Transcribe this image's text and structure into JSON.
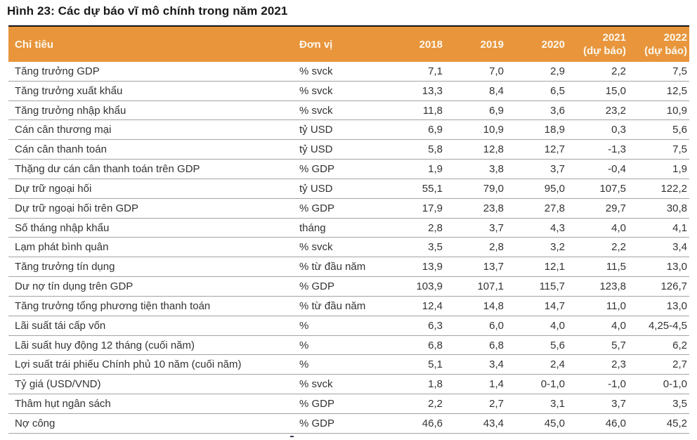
{
  "title": "Hình 23: Các dự báo vĩ mô chính trong năm 2021",
  "colors": {
    "header_background": "#E8953C",
    "header_text": "#FDF8EE",
    "table_top_border": "#141414",
    "row_separator": "#A3A3A3",
    "body_text": "#333333"
  },
  "table": {
    "header": {
      "indicator": "Chỉ tiêu",
      "unit": "Đơn vị",
      "years": [
        {
          "label": "2018",
          "sub": ""
        },
        {
          "label": "2019",
          "sub": ""
        },
        {
          "label": "2020",
          "sub": ""
        },
        {
          "label": "2021",
          "sub": "(dự báo)"
        },
        {
          "label": "2022",
          "sub": "(dự báo)"
        }
      ]
    },
    "rows": [
      {
        "indicator": "Tăng trưởng GDP",
        "unit": "% svck",
        "values": [
          "7,1",
          "7,0",
          "2,9",
          "2,2",
          "7,5"
        ]
      },
      {
        "indicator": "Tăng trưởng xuất khẩu",
        "unit": "% svck",
        "values": [
          "13,3",
          "8,4",
          "6,5",
          "15,0",
          "12,5"
        ]
      },
      {
        "indicator": "Tăng trưởng nhập khẩu",
        "unit": "% svck",
        "values": [
          "11,8",
          "6,9",
          "3,6",
          "23,2",
          "10,9"
        ]
      },
      {
        "indicator": "Cán cân thương mại",
        "unit": "tỷ USD",
        "values": [
          "6,9",
          "10,9",
          "18,9",
          "0,3",
          "5,6"
        ]
      },
      {
        "indicator": "Cán cân thanh toán",
        "unit": "tỷ USD",
        "values": [
          "5,8",
          "12,8",
          "12,7",
          "-1,3",
          "7,5"
        ]
      },
      {
        "indicator": "Thặng dư cán cân thanh toán trên GDP",
        "unit": "% GDP",
        "values": [
          "1,9",
          "3,8",
          "3,7",
          "-0,4",
          "1,9"
        ]
      },
      {
        "indicator": "Dự trữ ngoại hối",
        "unit": "tỷ USD",
        "values": [
          "55,1",
          "79,0",
          "95,0",
          "107,5",
          "122,2"
        ]
      },
      {
        "indicator": "Dự trữ ngoại hối trên GDP",
        "unit": "% GDP",
        "values": [
          "17,9",
          "23,8",
          "27,8",
          "29,7",
          "30,8"
        ]
      },
      {
        "indicator": "Số tháng nhập khẩu",
        "unit": "tháng",
        "values": [
          "2,8",
          "3,7",
          "4,3",
          "4,0",
          "4,1"
        ]
      },
      {
        "indicator": "Lạm phát bình quân",
        "unit": "% svck",
        "values": [
          "3,5",
          "2,8",
          "3,2",
          "2,2",
          "3,4"
        ]
      },
      {
        "indicator": "Tăng trưởng tín dụng",
        "unit": "% từ đầu năm",
        "values": [
          "13,9",
          "13,7",
          "12,1",
          "11,5",
          "13,0"
        ]
      },
      {
        "indicator": "Dư nợ tín dụng trên GDP",
        "unit": "% GDP",
        "values": [
          "103,9",
          "107,1",
          "115,7",
          "123,8",
          "126,7"
        ]
      },
      {
        "indicator": "Tăng trưởng tổng phương tiện thanh toán",
        "unit": "% từ đầu năm",
        "values": [
          "12,4",
          "14,8",
          "14,7",
          "11,0",
          "13,0"
        ]
      },
      {
        "indicator": "Lãi suất tái cấp vốn",
        "unit": "%",
        "values": [
          "6,3",
          "6,0",
          "4,0",
          "4,0",
          "4,25-4,5"
        ]
      },
      {
        "indicator": "Lãi suất huy động 12 tháng (cuối năm)",
        "unit": "%",
        "values": [
          "6,8",
          "6,8",
          "5,6",
          "5,7",
          "6,2"
        ]
      },
      {
        "indicator": "Lợi suất trái phiếu Chính phủ 10 năm (cuối năm)",
        "unit": "%",
        "values": [
          "5,1",
          "3,4",
          "2,4",
          "2,3",
          "2,7"
        ]
      },
      {
        "indicator": "Tỷ giá (USD/VND)",
        "unit": "% svck",
        "values": [
          "1,8",
          "1,4",
          "0-1,0",
          "-1,0",
          "0-1,0"
        ]
      },
      {
        "indicator": "Thâm hụt ngân sách",
        "unit": "% GDP",
        "values": [
          "2,2",
          "2,7",
          "3,1",
          "3,7",
          "3,5"
        ]
      },
      {
        "indicator": "Nợ công",
        "unit": "% GDP",
        "values": [
          "46,6",
          "43,4",
          "45,0",
          "46,0",
          "45,2"
        ]
      }
    ]
  }
}
